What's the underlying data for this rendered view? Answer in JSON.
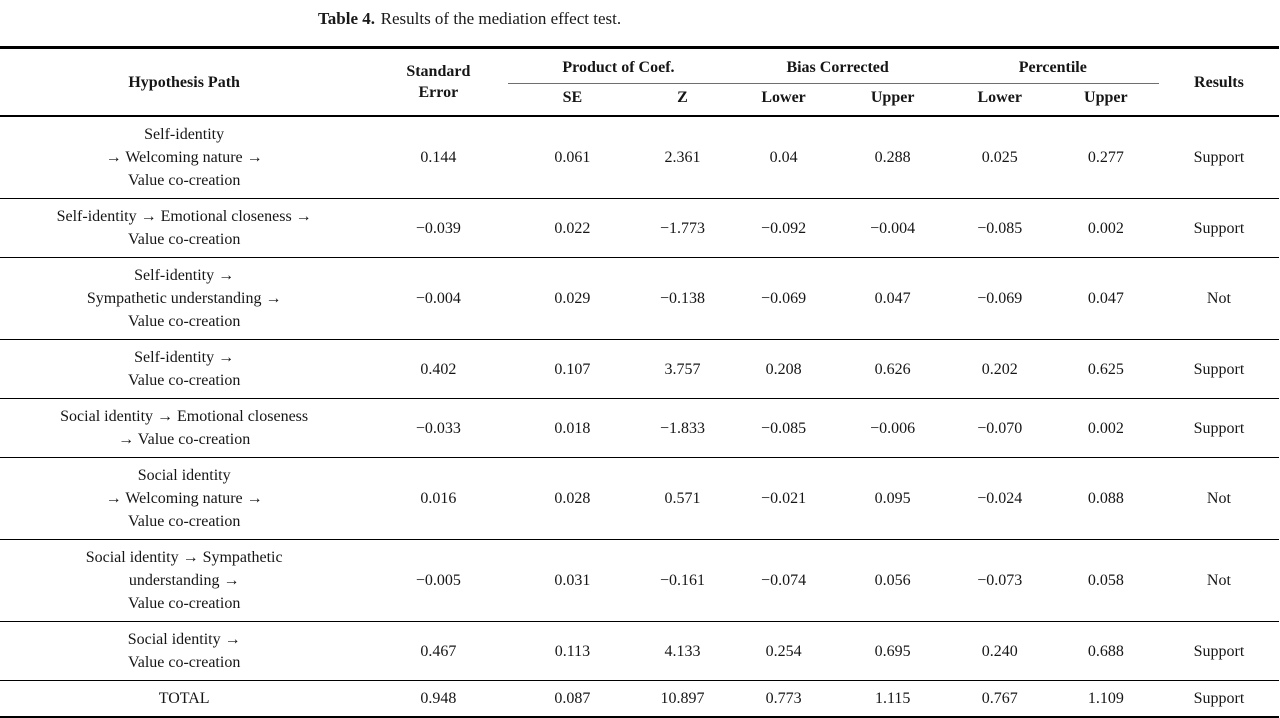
{
  "caption": {
    "label": "Table 4.",
    "text": "Results of the mediation effect test."
  },
  "table": {
    "columns": {
      "hypothesis_path": "Hypothesis Path",
      "standard_error": "Standard\nError",
      "product_of_coef": "Product of Coef.",
      "bias_corrected": "Bias Corrected",
      "percentile": "Percentile",
      "results": "Results",
      "se": "SE",
      "z": "Z",
      "lower": "Lower",
      "upper": "Upper"
    },
    "rows": [
      {
        "path_lines": [
          "Self-identity",
          "→ Welcoming nature →",
          "Value co-creation"
        ],
        "standard_error": "0.144",
        "se": "0.061",
        "z": "2.361",
        "bc_lower": "0.04",
        "bc_upper": "0.288",
        "p_lower": "0.025",
        "p_upper": "0.277",
        "result": "Support"
      },
      {
        "path_lines": [
          "Self-identity → Emotional closeness →",
          "Value co-creation"
        ],
        "standard_error": "−0.039",
        "se": "0.022",
        "z": "−1.773",
        "bc_lower": "−0.092",
        "bc_upper": "−0.004",
        "p_lower": "−0.085",
        "p_upper": "0.002",
        "result": "Support"
      },
      {
        "path_lines": [
          "Self-identity →",
          "Sympathetic understanding →",
          "Value co-creation"
        ],
        "standard_error": "−0.004",
        "se": "0.029",
        "z": "−0.138",
        "bc_lower": "−0.069",
        "bc_upper": "0.047",
        "p_lower": "−0.069",
        "p_upper": "0.047",
        "result": "Not"
      },
      {
        "path_lines": [
          "Self-identity →",
          "Value co-creation"
        ],
        "standard_error": "0.402",
        "se": "0.107",
        "z": "3.757",
        "bc_lower": "0.208",
        "bc_upper": "0.626",
        "p_lower": "0.202",
        "p_upper": "0.625",
        "result": "Support"
      },
      {
        "path_lines": [
          "Social identity → Emotional closeness",
          "→ Value co-creation"
        ],
        "standard_error": "−0.033",
        "se": "0.018",
        "z": "−1.833",
        "bc_lower": "−0.085",
        "bc_upper": "−0.006",
        "p_lower": "−0.070",
        "p_upper": "0.002",
        "result": "Support"
      },
      {
        "path_lines": [
          "Social identity",
          "→ Welcoming nature →",
          "Value co-creation"
        ],
        "standard_error": "0.016",
        "se": "0.028",
        "z": "0.571",
        "bc_lower": "−0.021",
        "bc_upper": "0.095",
        "p_lower": "−0.024",
        "p_upper": "0.088",
        "result": "Not"
      },
      {
        "path_lines": [
          "Social identity → Sympathetic",
          "understanding →",
          "Value co-creation"
        ],
        "standard_error": "−0.005",
        "se": "0.031",
        "z": "−0.161",
        "bc_lower": "−0.074",
        "bc_upper": "0.056",
        "p_lower": "−0.073",
        "p_upper": "0.058",
        "result": "Not"
      },
      {
        "path_lines": [
          "Social identity →",
          "Value co-creation"
        ],
        "standard_error": "0.467",
        "se": "0.113",
        "z": "4.133",
        "bc_lower": "0.254",
        "bc_upper": "0.695",
        "p_lower": "0.240",
        "p_upper": "0.688",
        "result": "Support"
      },
      {
        "path_lines": [
          "TOTAL"
        ],
        "standard_error": "0.948",
        "se": "0.087",
        "z": "10.897",
        "bc_lower": "0.773",
        "bc_upper": "1.115",
        "p_lower": "0.767",
        "p_upper": "1.109",
        "result": "Support"
      }
    ]
  }
}
